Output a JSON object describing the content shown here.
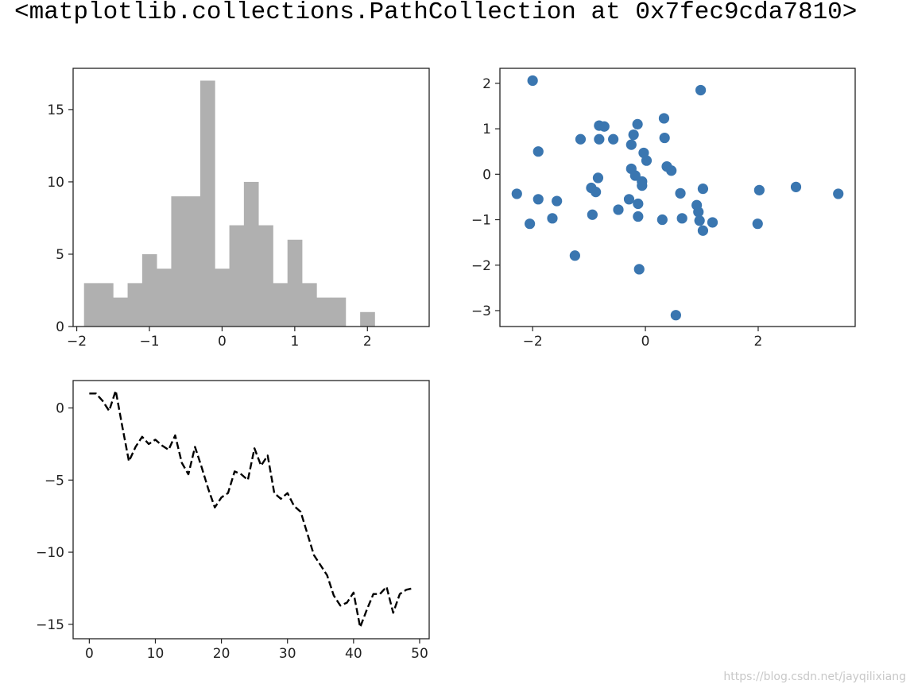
{
  "output_text": "<matplotlib.collections.PathCollection at 0x7fec9cda7810>",
  "watermark": "https://blog.csdn.net/jayqilixiang",
  "colors": {
    "hist": "#b0b0b0",
    "scatter": "#3a76b0",
    "line": "#000000",
    "axes": "#222222"
  },
  "chart_data": [
    {
      "type": "bar",
      "subtype": "histogram",
      "title": "",
      "xlabel": "",
      "ylabel": "",
      "bin_start": -1.9,
      "bin_width": 0.2,
      "counts": [
        3,
        3,
        2,
        3,
        5,
        4,
        9,
        9,
        17,
        4,
        7,
        10,
        7,
        3,
        6,
        3,
        2,
        2,
        0,
        1
      ],
      "xlim": [
        -2.05,
        2.85
      ],
      "ylim": [
        0,
        17.85
      ],
      "xticks": [
        -2,
        -1,
        0,
        1,
        2
      ],
      "xtick_labels": [
        "−2",
        "−1",
        "0",
        "1",
        "2"
      ],
      "yticks": [
        0,
        5,
        10,
        15
      ],
      "ytick_labels": [
        "0",
        "5",
        "10",
        "15"
      ]
    },
    {
      "type": "scatter",
      "title": "",
      "xlabel": "",
      "ylabel": "",
      "points": [
        [
          -2.28,
          -0.43
        ],
        [
          -2.05,
          -1.09
        ],
        [
          -2.0,
          2.06
        ],
        [
          -1.9,
          0.5
        ],
        [
          -1.9,
          -0.55
        ],
        [
          -1.65,
          -0.97
        ],
        [
          -1.57,
          -0.59
        ],
        [
          -1.25,
          -1.79
        ],
        [
          -1.15,
          0.77
        ],
        [
          -0.96,
          -0.3
        ],
        [
          -0.94,
          -0.89
        ],
        [
          -0.88,
          -0.39
        ],
        [
          -0.84,
          -0.08
        ],
        [
          -0.82,
          1.07
        ],
        [
          -0.82,
          0.77
        ],
        [
          -0.73,
          1.05
        ],
        [
          -0.57,
          0.77
        ],
        [
          -0.48,
          -0.78
        ],
        [
          -0.29,
          -0.55
        ],
        [
          -0.25,
          0.65
        ],
        [
          -0.25,
          0.12
        ],
        [
          -0.21,
          0.87
        ],
        [
          -0.18,
          -0.03
        ],
        [
          -0.14,
          1.1
        ],
        [
          -0.13,
          -0.65
        ],
        [
          -0.13,
          -0.93
        ],
        [
          -0.11,
          -2.09
        ],
        [
          -0.06,
          -0.16
        ],
        [
          -0.06,
          -0.25
        ],
        [
          -0.03,
          0.47
        ],
        [
          0.02,
          0.3
        ],
        [
          0.3,
          -1.0
        ],
        [
          0.33,
          1.23
        ],
        [
          0.34,
          0.8
        ],
        [
          0.38,
          0.17
        ],
        [
          0.46,
          0.08
        ],
        [
          0.54,
          -3.1
        ],
        [
          0.62,
          -0.42
        ],
        [
          0.65,
          -0.97
        ],
        [
          0.91,
          -0.68
        ],
        [
          0.94,
          -0.83
        ],
        [
          0.96,
          -1.02
        ],
        [
          0.98,
          1.85
        ],
        [
          1.02,
          -0.32
        ],
        [
          1.02,
          -1.24
        ],
        [
          1.19,
          -1.06
        ],
        [
          1.99,
          -1.09
        ],
        [
          2.02,
          -0.35
        ],
        [
          2.67,
          -0.28
        ],
        [
          3.42,
          -0.43
        ]
      ],
      "xlim": [
        -2.58,
        3.72
      ],
      "ylim": [
        -3.35,
        2.33
      ],
      "xticks": [
        -2,
        0,
        2
      ],
      "xtick_labels": [
        "−2",
        "0",
        "2"
      ],
      "yticks": [
        -3,
        -2,
        -1,
        0,
        1,
        2
      ],
      "ytick_labels": [
        "−3",
        "−2",
        "−1",
        "0",
        "1",
        "2"
      ]
    },
    {
      "type": "line",
      "style": "dashed",
      "title": "",
      "xlabel": "",
      "ylabel": "",
      "x": [
        0,
        1,
        2,
        3,
        4,
        5,
        6,
        7,
        8,
        9,
        10,
        11,
        12,
        13,
        14,
        15,
        16,
        17,
        18,
        19,
        20,
        21,
        22,
        23,
        24,
        25,
        26,
        27,
        28,
        29,
        30,
        31,
        32,
        33,
        34,
        35,
        36,
        37,
        38,
        39,
        40,
        41,
        42,
        43,
        44,
        45,
        46,
        47,
        48,
        49
      ],
      "y": [
        1.0,
        1.0,
        0.5,
        -0.2,
        1.2,
        -1.3,
        -3.7,
        -2.7,
        -2.0,
        -2.5,
        -2.2,
        -2.6,
        -2.9,
        -1.9,
        -3.8,
        -4.6,
        -2.7,
        -4.1,
        -5.6,
        -6.9,
        -6.2,
        -5.9,
        -4.4,
        -4.6,
        -5.0,
        -2.8,
        -4.0,
        -3.3,
        -5.9,
        -6.3,
        -5.9,
        -6.8,
        -7.2,
        -8.7,
        -10.2,
        -10.9,
        -11.6,
        -13.0,
        -13.7,
        -13.5,
        -12.8,
        -15.2,
        -14.0,
        -12.9,
        -12.9,
        -12.4,
        -14.2,
        -12.9,
        -12.6,
        -12.5
      ],
      "xlim": [
        -2.45,
        51.45
      ],
      "ylim": [
        -16.0,
        1.9
      ],
      "xticks": [
        0,
        10,
        20,
        30,
        40,
        50
      ],
      "xtick_labels": [
        "0",
        "10",
        "20",
        "30",
        "40",
        "50"
      ],
      "yticks": [
        -15,
        -10,
        -5,
        0
      ],
      "ytick_labels": [
        "−15",
        "−10",
        "−5",
        "0"
      ]
    }
  ]
}
